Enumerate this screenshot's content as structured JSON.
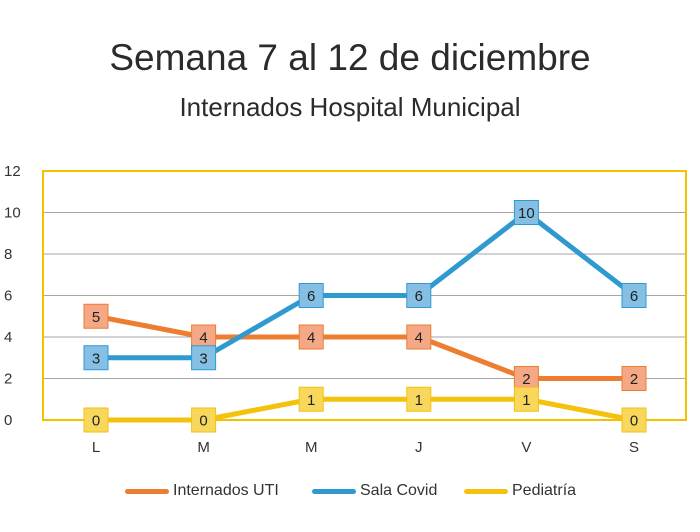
{
  "title": "Semana 7 al 12 de diciembre",
  "subtitle": "Internados Hospital Municipal",
  "chart_data": {
    "type": "line",
    "title": "Semana 7 al 12 de diciembre",
    "subtitle": "Internados Hospital Municipal",
    "categories": [
      "L",
      "M",
      "M",
      "J",
      "V",
      "S"
    ],
    "ylim": [
      0,
      12
    ],
    "yticks": [
      0,
      2,
      4,
      6,
      8,
      10,
      12
    ],
    "grid": true,
    "legend_position": "bottom",
    "series": [
      {
        "name": "Internados UTI",
        "values": [
          5,
          4,
          4,
          4,
          2,
          2
        ],
        "color": "#ed7d31",
        "label_bg": "#f4a885"
      },
      {
        "name": "Sala Covid",
        "values": [
          3,
          3,
          6,
          6,
          10,
          6
        ],
        "color": "#2e9ad0",
        "label_bg": "#85c0e4"
      },
      {
        "name": "Pediatría",
        "values": [
          0,
          0,
          1,
          1,
          1,
          0
        ],
        "color": "#f4c20d",
        "label_bg": "#f8d85c"
      }
    ]
  }
}
